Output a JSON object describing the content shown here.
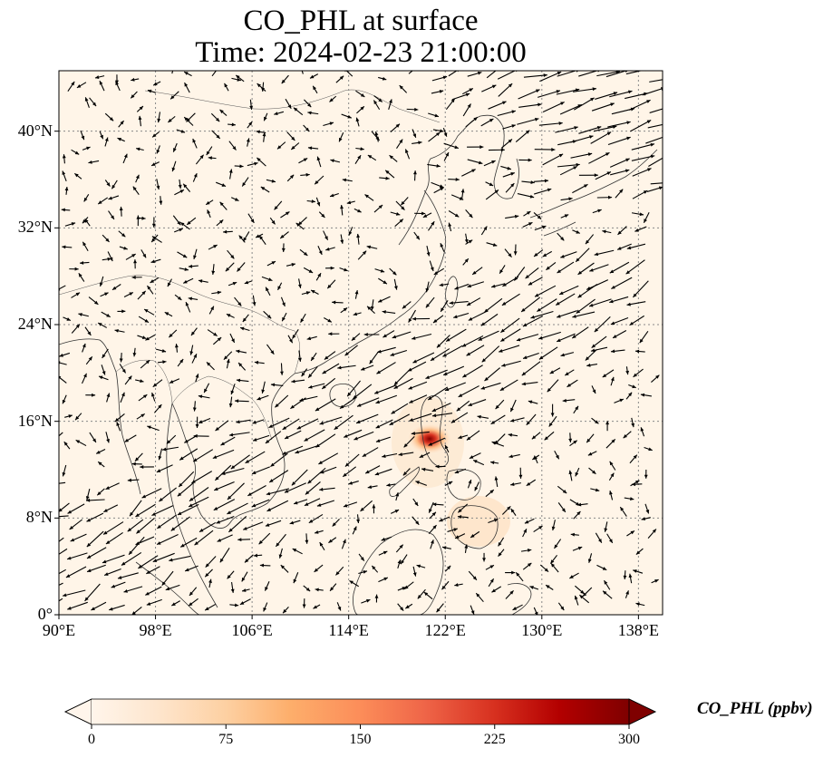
{
  "title_line1": "CO_PHL at surface",
  "title_line2": "Time: 2024-02-23 21:00:00",
  "colorbar_label": "CO_PHL (ppbv)",
  "colorbar_ticks": [
    "0",
    "75",
    "150",
    "225",
    "300"
  ],
  "colors": {
    "land_background": "#fff5e8",
    "coastline": "#333333",
    "gridline": "#888888",
    "arrow": "#000000",
    "colormap": [
      "#fff5eb",
      "#fee6ce",
      "#fdd0a2",
      "#fdae6b",
      "#fd8d3c",
      "#f16913",
      "#d94801",
      "#a63603",
      "#7f2704"
    ]
  },
  "map": {
    "projection": "PlateCarree",
    "lon_range": [
      90,
      140
    ],
    "lat_range": [
      0,
      45
    ],
    "colormap_range": [
      0,
      300
    ],
    "colormap_extend": "both",
    "field": "CO_PHL surface concentration with wind vectors",
    "hotspot": {
      "lon": 120.6,
      "lat": 14.6,
      "value": 300
    },
    "lon_ticks": [
      {
        "lon": 90,
        "label": "90°E"
      },
      {
        "lon": 98,
        "label": "98°E"
      },
      {
        "lon": 106,
        "label": "106°E"
      },
      {
        "lon": 114,
        "label": "114°E"
      },
      {
        "lon": 122,
        "label": "122°E"
      },
      {
        "lon": 130,
        "label": "130°E"
      },
      {
        "lon": 138,
        "label": "138°E"
      }
    ],
    "lat_ticks": [
      {
        "lat": 40,
        "label": "40°N"
      },
      {
        "lat": 32,
        "label": "32°N"
      },
      {
        "lat": 24,
        "label": "24°N"
      },
      {
        "lat": 16,
        "label": "16°N"
      },
      {
        "lat": 8,
        "label": "8°N"
      },
      {
        "lat": 0,
        "label": "0°"
      }
    ]
  }
}
